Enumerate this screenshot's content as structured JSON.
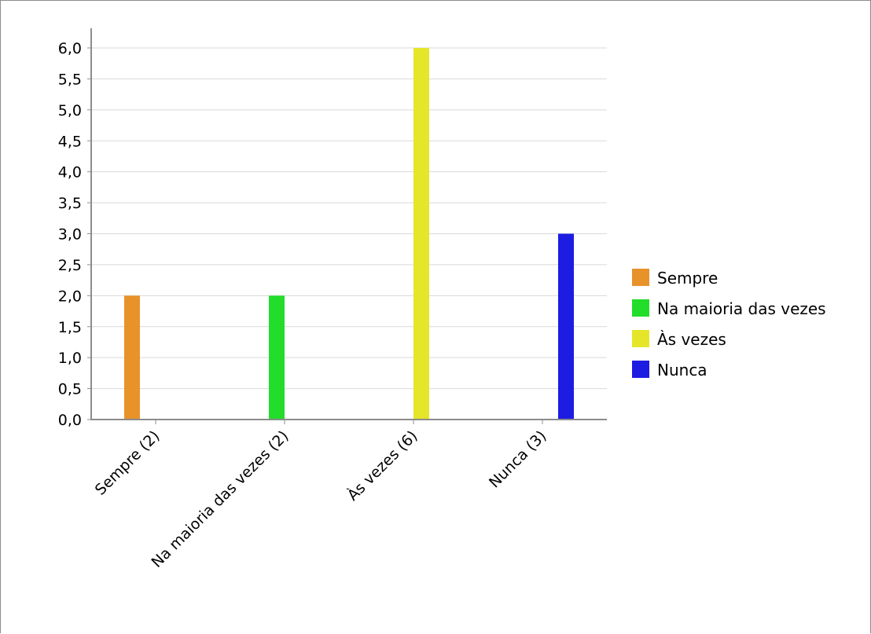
{
  "chart_data": {
    "type": "bar",
    "title": "",
    "xlabel": "",
    "ylabel": "",
    "categories": [
      "Sempre (2)",
      "Na maioria das vezes (2)",
      "Às vezes (6)",
      "Nunca (3)"
    ],
    "series": [
      {
        "name": "Sempre",
        "color": "#e8922a",
        "values": [
          2,
          0,
          0,
          0
        ]
      },
      {
        "name": "Na maioria das vezes",
        "color": "#22dd2a",
        "values": [
          0,
          2,
          0,
          0
        ]
      },
      {
        "name": "Às vezes",
        "color": "#e5e52a",
        "values": [
          0,
          0,
          6,
          0
        ]
      },
      {
        "name": "Nunca",
        "color": "#1c1ce2",
        "values": [
          0,
          0,
          0,
          3
        ]
      }
    ],
    "ylim": [
      0,
      6
    ],
    "yticks": [
      "0,0",
      "0,5",
      "1,0",
      "1,5",
      "2,0",
      "2,5",
      "3,0",
      "3,5",
      "4,0",
      "4,5",
      "5,0",
      "5,5",
      "6,0"
    ],
    "grid": true,
    "legend_position": "right"
  }
}
